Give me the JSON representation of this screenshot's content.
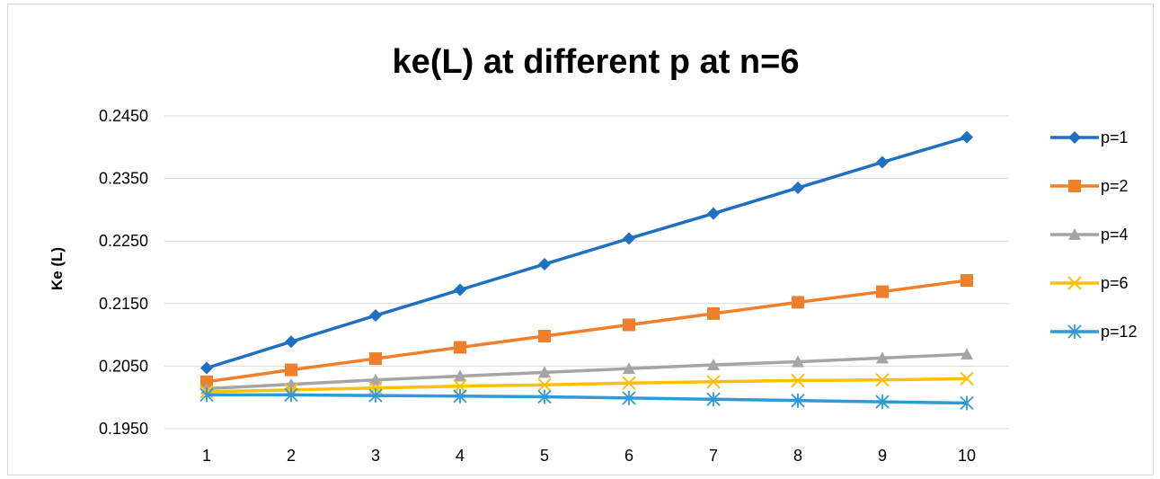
{
  "chart_data": {
    "type": "line",
    "title": "ke(L) at different p at n=6",
    "xlabel": "",
    "ylabel": "Ke (L)",
    "categories": [
      "1",
      "2",
      "3",
      "4",
      "5",
      "6",
      "7",
      "8",
      "9",
      "10"
    ],
    "ylim": [
      0.195,
      0.245
    ],
    "yticks": [
      "0.1950",
      "0.2050",
      "0.2150",
      "0.2250",
      "0.2350",
      "0.2450"
    ],
    "grid": "horizontal",
    "legend_position": "right",
    "series": [
      {
        "name": "p=1",
        "color": "#1f6fc2",
        "marker": "diamond",
        "values": [
          0.2047,
          0.2089,
          0.2131,
          0.2172,
          0.2213,
          0.2254,
          0.2294,
          0.2335,
          0.2376,
          0.2416
        ]
      },
      {
        "name": "p=2",
        "color": "#f07f2c",
        "marker": "square",
        "values": [
          0.2025,
          0.2044,
          0.2062,
          0.208,
          0.2098,
          0.2116,
          0.2134,
          0.2152,
          0.2169,
          0.2187
        ]
      },
      {
        "name": "p=4",
        "color": "#a5a5a5",
        "marker": "triangle",
        "values": [
          0.2014,
          0.2021,
          0.2028,
          0.2034,
          0.204,
          0.2046,
          0.2052,
          0.2057,
          0.2063,
          0.2069
        ]
      },
      {
        "name": "p=6",
        "color": "#ffc000",
        "marker": "x",
        "values": [
          0.2009,
          0.2012,
          0.2015,
          0.2018,
          0.202,
          0.2023,
          0.2025,
          0.2027,
          0.2028,
          0.203
        ]
      },
      {
        "name": "p=12",
        "color": "#2e9ad8",
        "marker": "asterisk",
        "values": [
          0.2004,
          0.2004,
          0.2003,
          0.2002,
          0.2001,
          0.1999,
          0.1997,
          0.1995,
          0.1993,
          0.1991
        ]
      }
    ]
  }
}
